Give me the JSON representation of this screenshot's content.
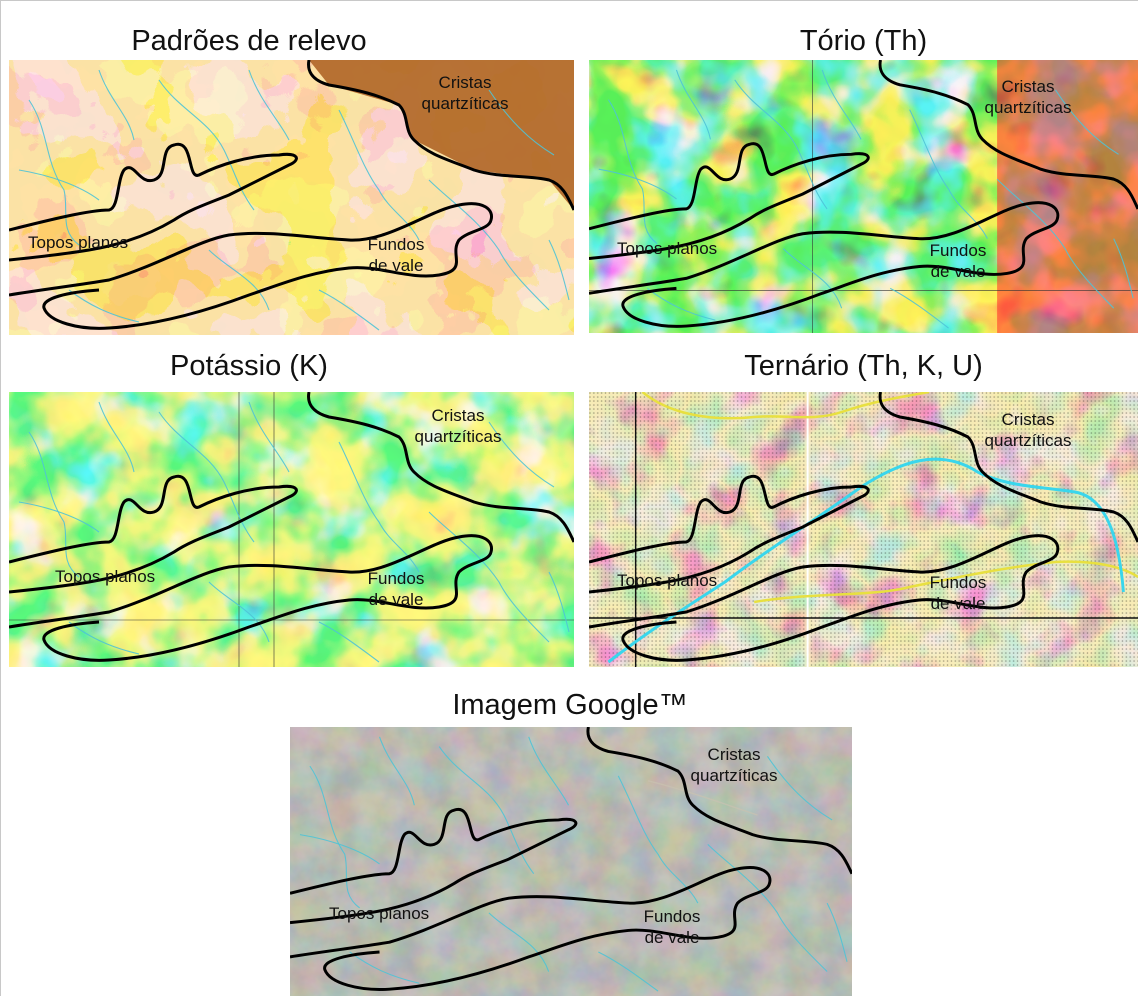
{
  "panels": [
    {
      "id": "relevo",
      "title": "Padrões de relevo"
    },
    {
      "id": "torio",
      "title": "Tório (Th)"
    },
    {
      "id": "potassio",
      "title": "Potássio (K)"
    },
    {
      "id": "ternario",
      "title": "Ternário (Th, K, U)"
    },
    {
      "id": "google",
      "title": "Imagem Google™"
    }
  ],
  "labels": {
    "cristas_1": "Cristas",
    "cristas_2": "quartzíticas",
    "topos": "Topos planos",
    "fundos_1": "Fundos",
    "fundos_2": "de vale"
  },
  "colors": {
    "boundary": "#000000",
    "drainage": "#4fc3d6",
    "relevo_cristas": "#b36a2c",
    "ternario_yellow": "#e8e040",
    "ternario_cyan": "#39d6ec"
  }
}
